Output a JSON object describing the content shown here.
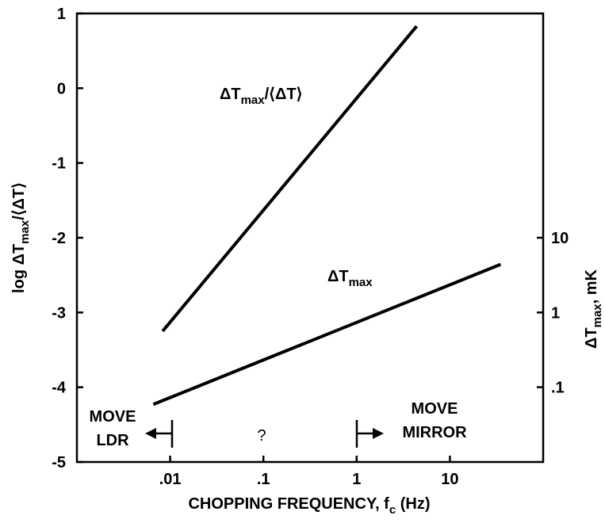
{
  "chart_data": {
    "type": "line",
    "xlabel": [
      {
        "t": "CHOPPING FREQUENCY, f"
      },
      {
        "t": "c",
        "sub": true
      },
      {
        "t": " (Hz)"
      }
    ],
    "ylabel": [
      {
        "t": "log  ΔT"
      },
      {
        "t": "max",
        "sub": true
      },
      {
        "t": "/⟨ΔT⟩"
      }
    ],
    "y2label": [
      {
        "t": "ΔT"
      },
      {
        "t": "max",
        "sub": true
      },
      {
        "t": ", mK"
      }
    ],
    "xscale": "log",
    "y2scale": "log",
    "xlim": [
      0.001,
      100
    ],
    "xticks": [
      {
        "value": 0.01,
        "label": ".01"
      },
      {
        "value": 0.1,
        "label": ".1"
      },
      1,
      10
    ],
    "ylim": [
      -5,
      1
    ],
    "yticks": [
      1,
      0,
      -1,
      -2,
      -3,
      -4,
      -5
    ],
    "y2lim": [
      0.01,
      10000
    ],
    "y2ticks": [
      10,
      1,
      {
        "value": 0.1,
        "label": ".1"
      }
    ],
    "series": [
      {
        "name": [
          {
            "t": "ΔT"
          },
          {
            "t": "max",
            "sub": true
          },
          {
            "t": "/⟨ΔT⟩"
          }
        ],
        "color": "#000",
        "x": [
          0.0083,
          4.4
        ],
        "values": [
          -3.25,
          0.83
        ]
      },
      {
        "name": [
          {
            "t": "ΔT"
          },
          {
            "t": "max",
            "sub": true
          }
        ],
        "color": "#000",
        "axis": "y2",
        "x": [
          0.0066,
          35
        ],
        "values": [
          0.059,
          4.4
        ]
      }
    ],
    "annotations": [
      "MOVE",
      "LDR",
      "?",
      "MOVE",
      "MIRROR"
    ]
  }
}
